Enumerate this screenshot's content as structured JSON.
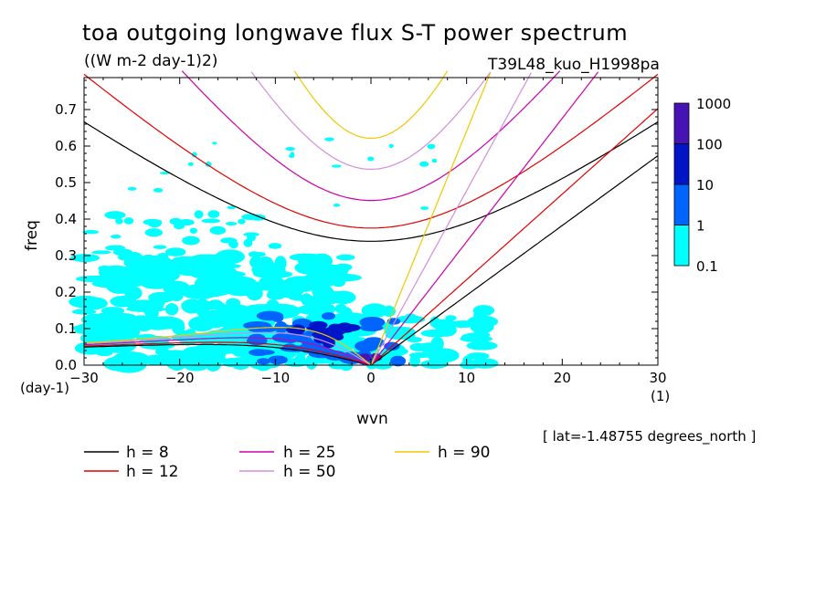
{
  "header": {
    "title": "toa outgoing longwave flux S-T power spectrum",
    "units": "((W m-2 day-1)2)",
    "run_id": "T39L48_kuo_H1998pa"
  },
  "axes": {
    "ylabel": "freq",
    "xlabel": "wvn",
    "y_unit": "(day-1)",
    "x_unit": "(1)",
    "lat_note": "[ lat=-1.48755 degrees_north ]"
  },
  "legend": [
    {
      "label": "h = 8",
      "color": "#000000"
    },
    {
      "label": "h = 12",
      "color": "#e00000"
    },
    {
      "label": "h = 25",
      "color": "#cc00aa"
    },
    {
      "label": "h = 50",
      "color": "#d48edc"
    },
    {
      "label": "h = 90",
      "color": "#f0c800"
    }
  ],
  "colorbar": {
    "levels": [
      "0.1",
      "1",
      "10",
      "100",
      "1000"
    ],
    "colors": [
      "#00ffff",
      "#0064ff",
      "#0014c8",
      "#4614b4"
    ]
  },
  "chart_data": {
    "type": "heatmap",
    "title": "toa outgoing longwave flux S-T power spectrum",
    "xlabel": "wvn",
    "ylabel": "freq",
    "xlim": [
      -30,
      30
    ],
    "ylim": [
      0,
      0.78
    ],
    "x_ticks": [
      -30,
      -20,
      -10,
      0,
      10,
      20,
      30
    ],
    "y_ticks": [
      0.0,
      0.1,
      0.2,
      0.3,
      0.4,
      0.5,
      0.6,
      0.7
    ],
    "y_tick_labels": [
      "0.0",
      "0.1",
      "0.2",
      "0.3",
      "0.4",
      "0.5",
      "0.6",
      "0.7"
    ],
    "contour_levels": [
      0.1,
      1,
      10,
      100,
      1000
    ],
    "spectrum_regions": [
      {
        "level": 0.1,
        "x": [
          -30,
          10
        ],
        "y": [
          0.0,
          0.4
        ]
      },
      {
        "level": 1,
        "x": [
          -12,
          2
        ],
        "y": [
          0.0,
          0.15
        ]
      },
      {
        "level": 10,
        "x": [
          -8,
          -3
        ],
        "y": [
          0.06,
          0.12
        ]
      }
    ],
    "dispersion_curves": {
      "equivalent_depths_m": [
        8,
        12,
        25,
        50,
        90
      ],
      "families": [
        "n=1 inertio-gravity",
        "kelvin",
        "rossby"
      ]
    }
  }
}
